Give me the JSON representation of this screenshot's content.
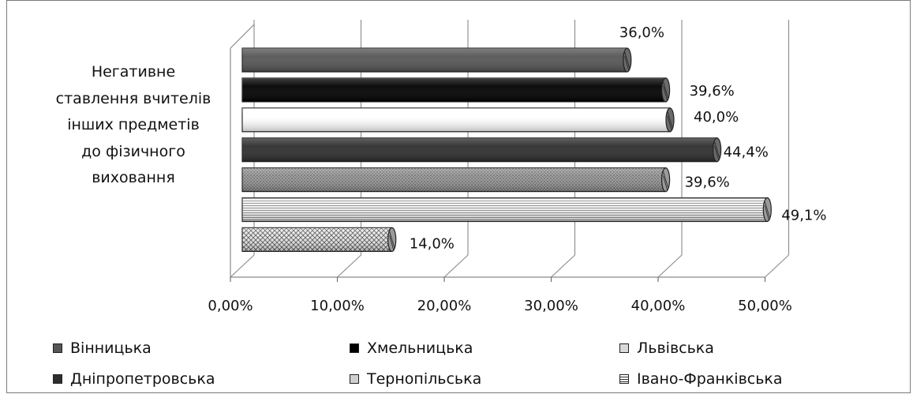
{
  "chart_data": {
    "type": "bar",
    "orientation": "horizontal",
    "style": "3d-cylinder",
    "category": "Негативне ставлення вчителів інших предметів до фізичного виховання",
    "category_lines": [
      "Негативне",
      "ставлення вчителів",
      "інших предметів",
      "до фізичного",
      "виховання"
    ],
    "xlim": [
      0,
      50
    ],
    "x_ticks": [
      "0,00%",
      "10,00%",
      "20,00%",
      "30,00%",
      "40,00%",
      "50,00%"
    ],
    "grid": true,
    "legend_position": "bottom",
    "series": [
      {
        "name": "Вінницька",
        "value": 36.0,
        "label": "36,0%",
        "fill": "#555555",
        "pattern": "solid"
      },
      {
        "name": "Хмельницька",
        "value": 39.6,
        "label": "39,6%",
        "fill": "#000000",
        "pattern": "solid"
      },
      {
        "name": "Львівська",
        "value": 40.0,
        "label": "40,0%",
        "fill": "#ffffff",
        "pattern": "solid"
      },
      {
        "name": "Дніпропетровська",
        "value": 44.4,
        "label": "44,4%",
        "fill": "#2e2e2e",
        "pattern": "solid"
      },
      {
        "name": "Тернопільська",
        "value": 39.6,
        "label": "39,6%",
        "fill": "#8a8a8a",
        "pattern": "dots"
      },
      {
        "name": "Івано-Франківська",
        "value": 49.1,
        "label": "49,1%",
        "fill": "#e6e6e6",
        "pattern": "hlines"
      },
      {
        "name": "",
        "value": 14.0,
        "label": "14,0%",
        "fill": "#cfcfcf",
        "pattern": "crosshatch"
      }
    ]
  },
  "legend": [
    {
      "label": "Вінницька",
      "color": "#555555"
    },
    {
      "label": "Хмельницька",
      "color": "#000000"
    },
    {
      "label": "Львівська",
      "color": "#d9d9d9"
    },
    {
      "label": "Дніпропетровська",
      "color": "#2e2e2e"
    },
    {
      "label": "Тернопільська",
      "color": "#d0d0d0"
    },
    {
      "label": "Івано-Франківська",
      "color": "#bdbdbd"
    }
  ]
}
